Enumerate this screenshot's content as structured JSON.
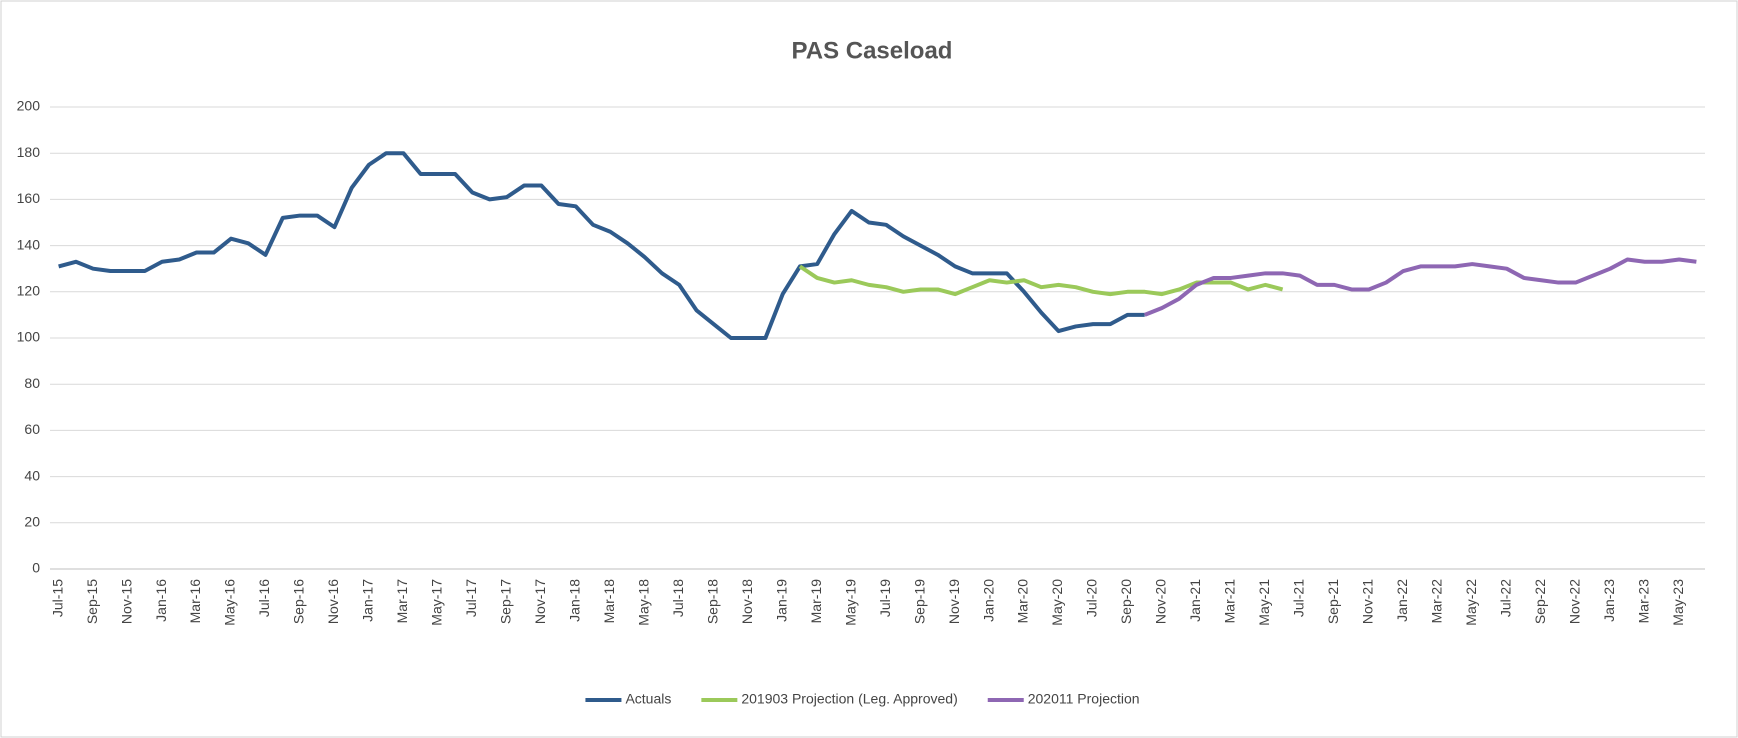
{
  "chart_data": {
    "type": "line",
    "title": "PAS Caseload",
    "categories": [
      "Jul-15",
      null,
      "Sep-15",
      null,
      "Nov-15",
      null,
      "Jan-16",
      null,
      "Mar-16",
      null,
      "May-16",
      null,
      "Jul-16",
      null,
      "Sep-16",
      null,
      "Nov-16",
      null,
      "Jan-17",
      null,
      "Mar-17",
      null,
      "May-17",
      null,
      "Jul-17",
      null,
      "Sep-17",
      null,
      "Nov-17",
      null,
      "Jan-18",
      null,
      "Mar-18",
      null,
      "May-18",
      null,
      "Jul-18",
      null,
      "Sep-18",
      null,
      "Nov-18",
      null,
      "Jan-19",
      null,
      "Mar-19",
      null,
      "May-19",
      null,
      "Jul-19",
      null,
      "Sep-19",
      null,
      "Nov-19",
      null,
      "Jan-20",
      null,
      "Mar-20",
      null,
      "May-20",
      null,
      "Jul-20",
      null,
      "Sep-20",
      null,
      "Nov-20",
      null,
      "Jan-21",
      null,
      "Mar-21",
      null,
      "May-21",
      null,
      "Jul-21",
      null,
      "Sep-21",
      null,
      "Nov-21",
      null,
      "Jan-22",
      null,
      "Mar-22",
      null,
      "May-22",
      null,
      "Jul-22",
      null,
      "Sep-22",
      null,
      "Nov-22",
      null,
      "Jan-23",
      null,
      "Mar-23",
      null,
      "May-23",
      null
    ],
    "series": [
      {
        "name": "Actuals",
        "color": "#2f5b8c",
        "values": [
          131,
          133,
          130,
          129,
          129,
          129,
          133,
          134,
          137,
          137,
          143,
          141,
          136,
          152,
          153,
          153,
          148,
          165,
          175,
          180,
          180,
          171,
          171,
          171,
          163,
          160,
          161,
          166,
          166,
          158,
          157,
          149,
          146,
          141,
          135,
          128,
          123,
          112,
          106,
          100,
          100,
          100,
          119,
          131,
          132,
          145,
          155,
          150,
          149,
          144,
          140,
          136,
          131,
          128,
          128,
          128,
          120,
          111,
          103,
          105,
          106,
          106,
          110,
          110,
          null,
          null,
          null,
          null,
          null,
          null,
          null,
          null,
          null,
          null,
          null,
          null,
          null,
          null,
          null,
          null,
          null,
          null,
          null,
          null,
          null,
          null,
          null,
          null,
          null,
          null,
          null,
          null,
          null,
          null,
          null,
          null
        ]
      },
      {
        "name": "201903 Projection (Leg. Approved)",
        "color": "#9bc95a",
        "values": [
          null,
          null,
          null,
          null,
          null,
          null,
          null,
          null,
          null,
          null,
          null,
          null,
          null,
          null,
          null,
          null,
          null,
          null,
          null,
          null,
          null,
          null,
          null,
          null,
          null,
          null,
          null,
          null,
          null,
          null,
          null,
          null,
          null,
          null,
          null,
          null,
          null,
          null,
          null,
          null,
          null,
          null,
          null,
          131,
          126,
          124,
          125,
          123,
          122,
          120,
          121,
          121,
          119,
          122,
          125,
          124,
          125,
          122,
          123,
          122,
          120,
          119,
          120,
          120,
          119,
          121,
          124,
          124,
          124,
          121,
          123,
          121,
          null,
          null,
          null,
          null,
          null,
          null,
          null,
          null,
          null,
          null,
          null,
          null,
          null,
          null,
          null,
          null,
          null,
          null,
          null,
          null,
          null,
          null,
          null,
          null
        ]
      },
      {
        "name": "202011 Projection",
        "color": "#8e67b3",
        "values": [
          null,
          null,
          null,
          null,
          null,
          null,
          null,
          null,
          null,
          null,
          null,
          null,
          null,
          null,
          null,
          null,
          null,
          null,
          null,
          null,
          null,
          null,
          null,
          null,
          null,
          null,
          null,
          null,
          null,
          null,
          null,
          null,
          null,
          null,
          null,
          null,
          null,
          null,
          null,
          null,
          null,
          null,
          null,
          null,
          null,
          null,
          null,
          null,
          null,
          null,
          null,
          null,
          null,
          null,
          null,
          null,
          null,
          null,
          null,
          null,
          null,
          null,
          null,
          110,
          113,
          117,
          123,
          126,
          126,
          127,
          128,
          128,
          127,
          123,
          123,
          121,
          121,
          124,
          129,
          131,
          131,
          131,
          132,
          131,
          130,
          126,
          125,
          124,
          124,
          127,
          130,
          134,
          133,
          133,
          134,
          133
        ]
      }
    ],
    "ylim": [
      0,
      200
    ],
    "yticks": [
      0,
      20,
      40,
      60,
      80,
      100,
      120,
      140,
      160,
      180,
      200
    ],
    "grid": true,
    "legend": "bottom"
  }
}
